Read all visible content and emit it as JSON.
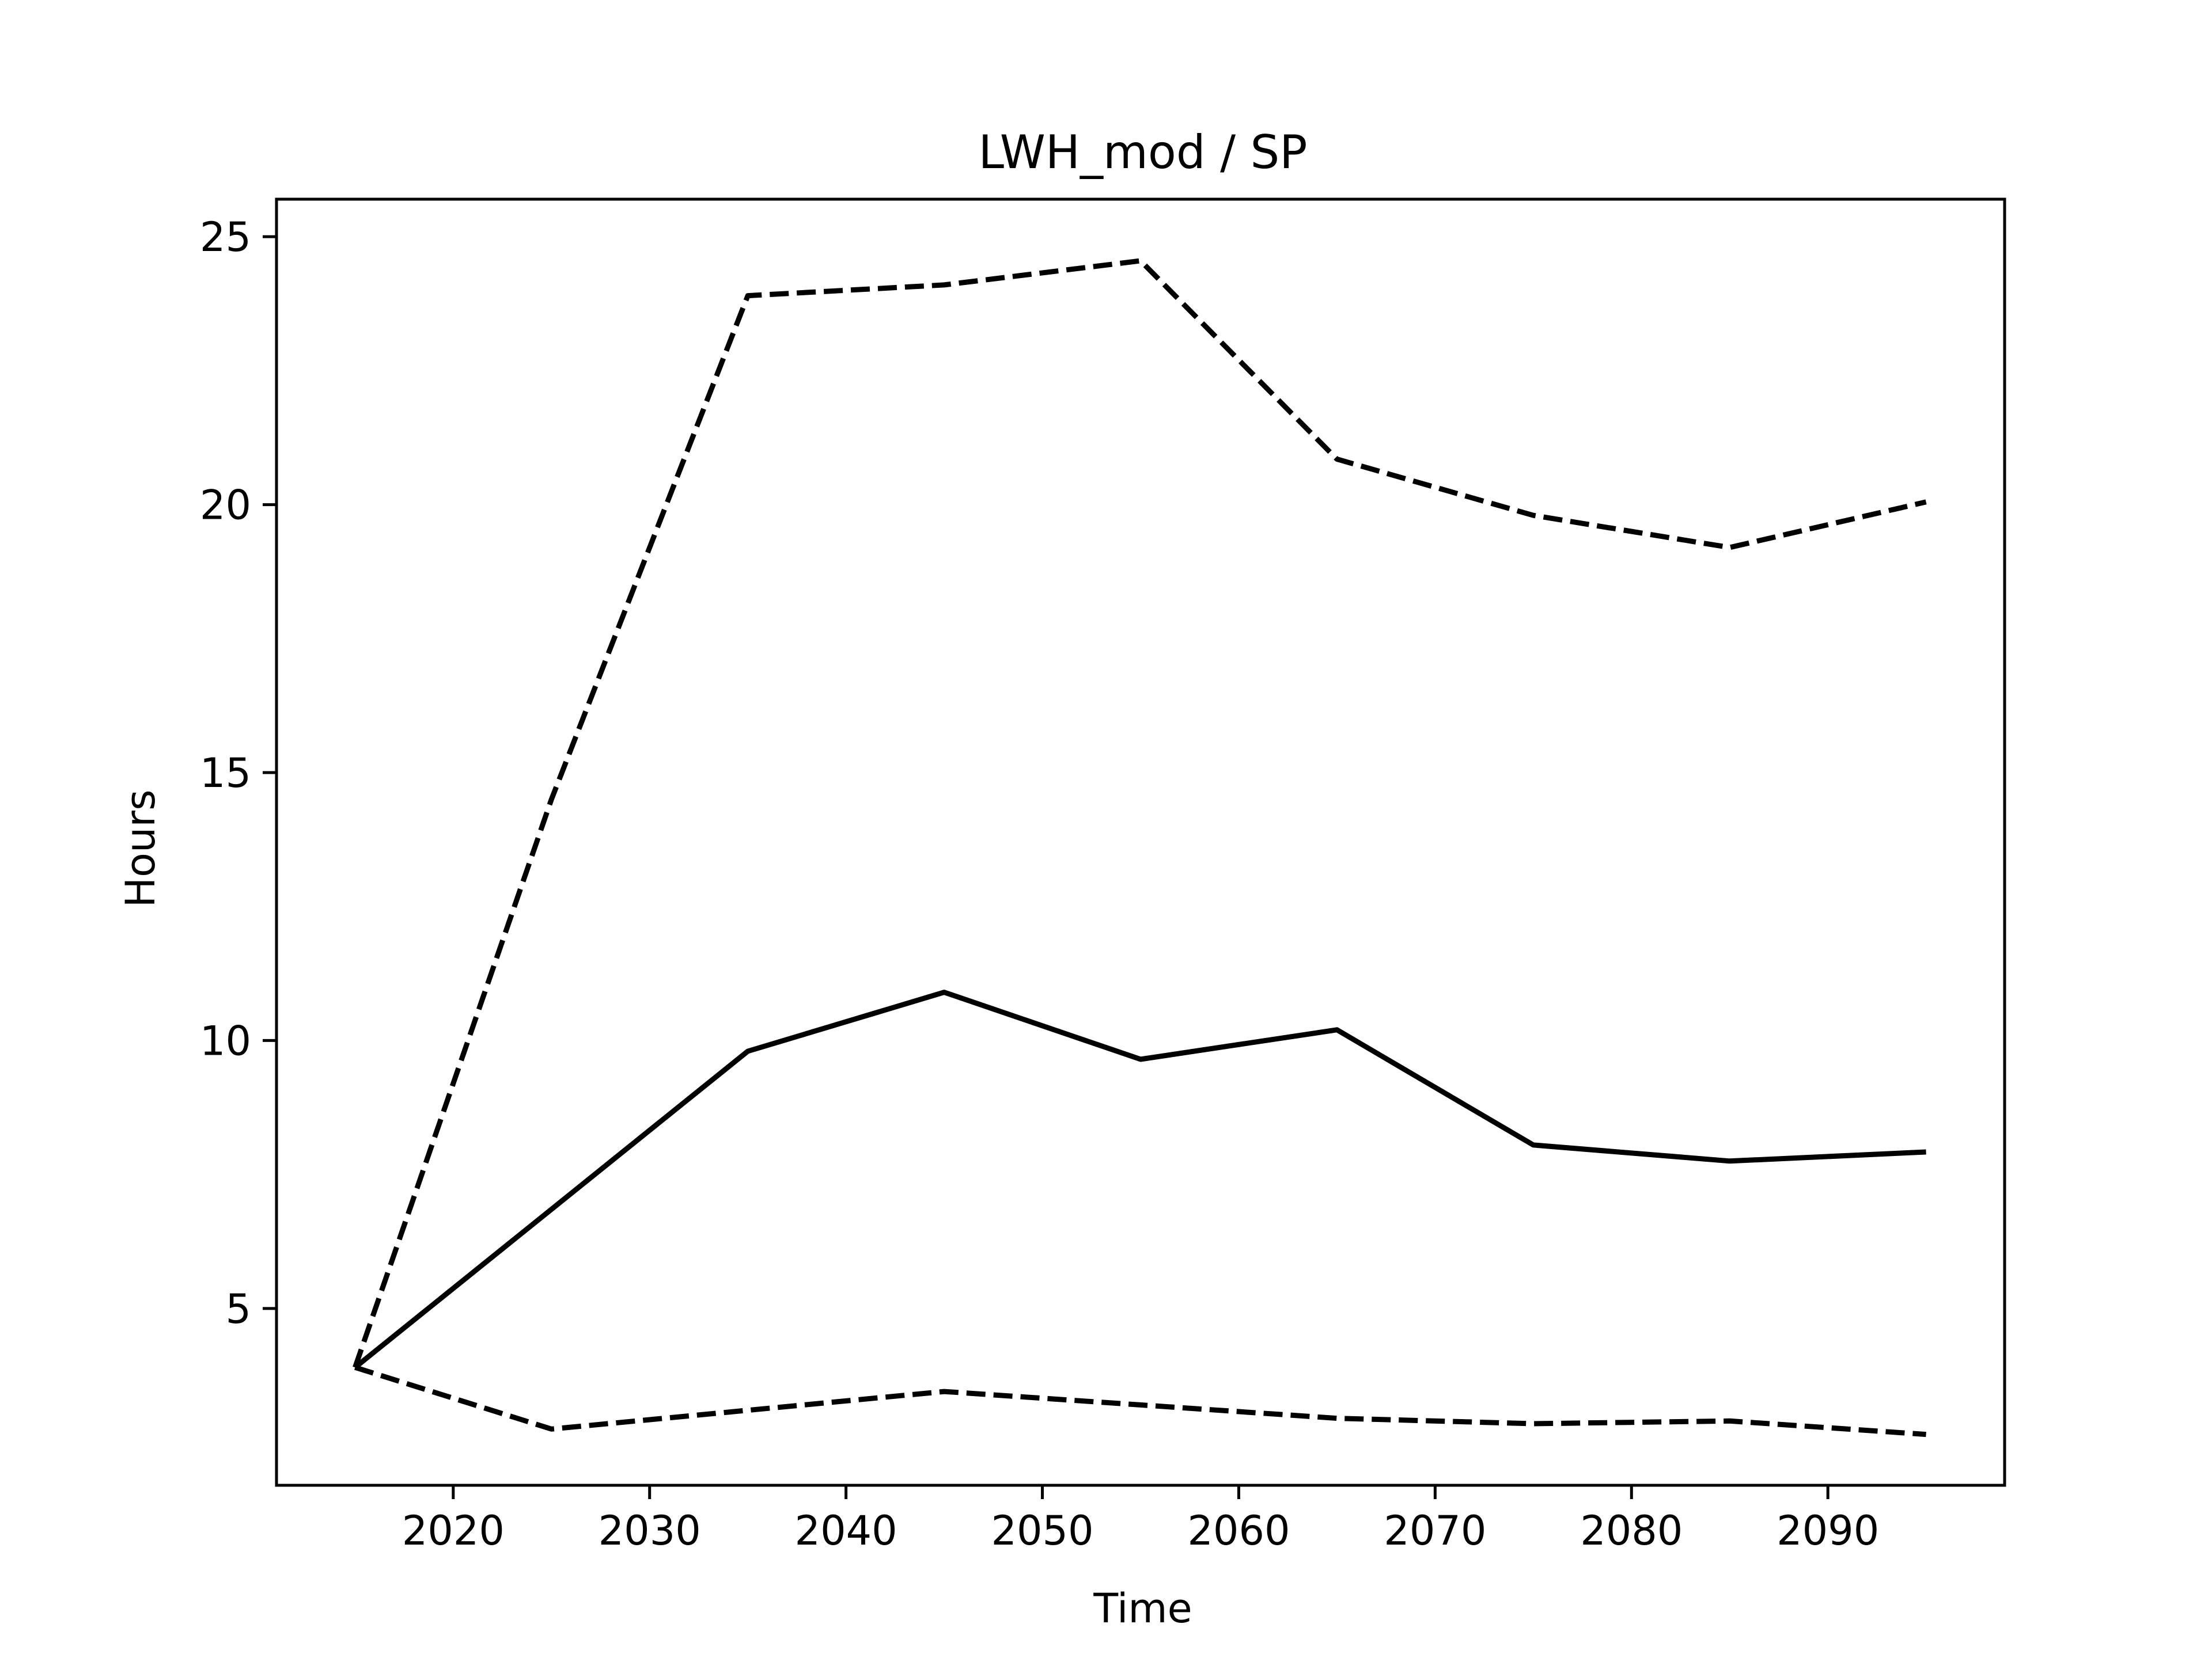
{
  "chart_data": {
    "type": "line",
    "title": "LWH_mod / SP",
    "xlabel": "Time",
    "ylabel": "Hours",
    "xlim": [
      2011,
      2099
    ],
    "ylim": [
      1.7,
      25.7
    ],
    "xticks": [
      2020,
      2030,
      2040,
      2050,
      2060,
      2070,
      2080,
      2090
    ],
    "yticks": [
      5,
      10,
      15,
      20,
      25
    ],
    "grid": false,
    "legend": "none",
    "x": [
      2015,
      2025,
      2035,
      2045,
      2055,
      2065,
      2075,
      2085,
      2095
    ],
    "series": [
      {
        "style": "dashed",
        "color": "#000000",
        "values": [
          3.9,
          14.5,
          23.9,
          24.1,
          24.55,
          20.85,
          19.8,
          19.2,
          20.05
        ]
      },
      {
        "style": "solid",
        "color": "#000000",
        "values": [
          3.9,
          6.85,
          9.8,
          10.9,
          9.65,
          10.2,
          8.05,
          7.75,
          7.92
        ]
      },
      {
        "style": "dashed",
        "color": "#000000",
        "values": [
          3.9,
          2.75,
          3.1,
          3.45,
          3.2,
          2.95,
          2.85,
          2.9,
          2.65
        ]
      }
    ]
  }
}
